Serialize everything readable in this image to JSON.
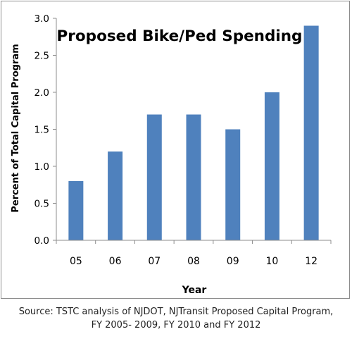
{
  "chart_data": {
    "type": "bar",
    "title": "Proposed Bike/Ped Spending",
    "xlabel": "Year",
    "ylabel": "Percent of Total Capital  Program",
    "categories": [
      "05",
      "06",
      "07",
      "08",
      "09",
      "10",
      "12"
    ],
    "values": [
      0.8,
      1.2,
      1.7,
      1.7,
      1.5,
      2.0,
      2.9
    ],
    "ylim": [
      0,
      3.0
    ],
    "yticks": [
      "0.0",
      "0.5",
      "1.0",
      "1.5",
      "2.0",
      "2.5",
      "3.0"
    ],
    "bar_color": "#4f81bd",
    "grid": false,
    "legend": "none"
  },
  "source_note": {
    "line1": "Source: TSTC analysis of NJDOT, NJTransit Proposed Capital Program,",
    "line2": "FY 2005- 2009, FY 2010 and FY 2012"
  }
}
